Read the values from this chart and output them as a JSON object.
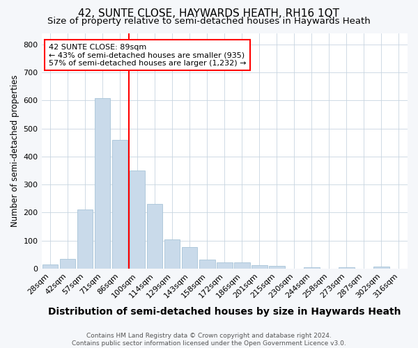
{
  "title": "42, SUNTE CLOSE, HAYWARDS HEATH, RH16 1QT",
  "subtitle": "Size of property relative to semi-detached houses in Haywards Heath",
  "xlabel": "Distribution of semi-detached houses by size in Haywards Heath",
  "ylabel": "Number of semi-detached properties",
  "categories": [
    "28sqm",
    "42sqm",
    "57sqm",
    "71sqm",
    "86sqm",
    "100sqm",
    "114sqm",
    "129sqm",
    "143sqm",
    "158sqm",
    "172sqm",
    "186sqm",
    "201sqm",
    "215sqm",
    "230sqm",
    "244sqm",
    "258sqm",
    "273sqm",
    "287sqm",
    "302sqm",
    "316sqm"
  ],
  "values": [
    14,
    35,
    210,
    607,
    460,
    350,
    232,
    105,
    78,
    32,
    22,
    22,
    12,
    10,
    0,
    6,
    0,
    6,
    0,
    8,
    0
  ],
  "bar_color": "#c9daea",
  "bar_edge_color": "#a8c4d8",
  "red_line_index": 4,
  "red_line_label": "42 SUNTE CLOSE: 89sqm",
  "annotation_line2": "← 43% of semi-detached houses are smaller (935)",
  "annotation_line3": "57% of semi-detached houses are larger (1,232) →",
  "ylim": [
    0,
    840
  ],
  "yticks": [
    0,
    100,
    200,
    300,
    400,
    500,
    600,
    700,
    800
  ],
  "title_fontsize": 11,
  "subtitle_fontsize": 9.5,
  "xlabel_fontsize": 10,
  "ylabel_fontsize": 8.5,
  "tick_fontsize": 8,
  "annot_fontsize": 8,
  "footer_line1": "Contains HM Land Registry data © Crown copyright and database right 2024.",
  "footer_line2": "Contains public sector information licensed under the Open Government Licence v3.0.",
  "background_color": "#f5f7fa",
  "plot_bg_color": "#ffffff",
  "grid_color": "#c8d4e0"
}
